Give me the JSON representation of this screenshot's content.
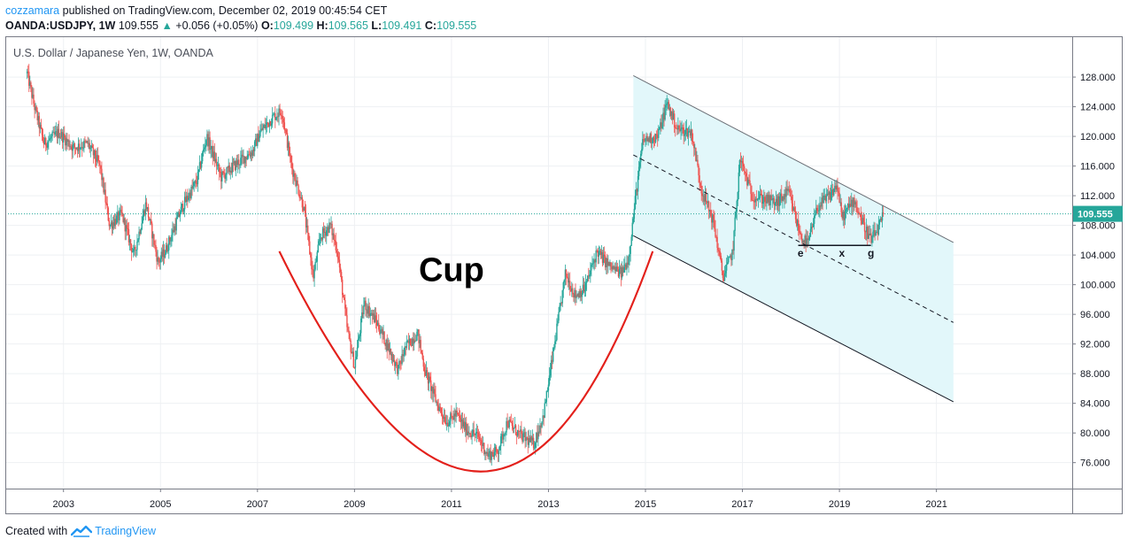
{
  "header": {
    "author": "cozzamara",
    "published_text": " published on TradingView.com, December 02, 2019 00:45:54 CET",
    "symbol": "OANDA:USDJPY, 1W",
    "last": "109.555",
    "change": "+0.056 (+0.05%)",
    "o_label": "O:",
    "o_value": "109.499",
    "h_label": "H:",
    "h_value": "109.565",
    "l_label": "L:",
    "l_value": "109.491",
    "c_label": "C:",
    "c_value": "109.555"
  },
  "footer": {
    "created_with": "Created with",
    "brand": "TradingView"
  },
  "colors": {
    "up": "#26a69a",
    "down": "#ef5350",
    "cup": "#e3201b",
    "channel_fill": "#e0f7fa",
    "price_label": "#26a69a",
    "grid": "#eef0f3"
  },
  "chart_data": {
    "type": "candlestick",
    "title": "U.S. Dollar / Japanese Yen, 1W, OANDA",
    "x_ticks": [
      "2003",
      "2005",
      "2007",
      "2009",
      "2011",
      "2013",
      "2015",
      "2017",
      "2019",
      "2021"
    ],
    "y_ticks": [
      "76.000",
      "80.000",
      "84.000",
      "88.000",
      "92.000",
      "96.000",
      "100.000",
      "104.000",
      "108.000",
      "112.000",
      "116.000",
      "120.000",
      "124.000",
      "128.000"
    ],
    "xlim": [
      2001.8,
      2023.8
    ],
    "ylim": [
      72.5,
      133.5
    ],
    "last_price": 109.555,
    "last_price_label": "109.555",
    "grid": true,
    "price_path": [
      [
        2002.25,
        128.5
      ],
      [
        2002.4,
        124
      ],
      [
        2002.6,
        119
      ],
      [
        2002.9,
        120.5
      ],
      [
        2003.2,
        118.5
      ],
      [
        2003.5,
        119
      ],
      [
        2003.75,
        116
      ],
      [
        2003.95,
        108
      ],
      [
        2004.2,
        109.5
      ],
      [
        2004.45,
        104
      ],
      [
        2004.7,
        111
      ],
      [
        2004.95,
        103
      ],
      [
        2005.1,
        104.5
      ],
      [
        2005.45,
        110.5
      ],
      [
        2005.75,
        114
      ],
      [
        2005.95,
        120
      ],
      [
        2006.25,
        114.5
      ],
      [
        2006.6,
        116.5
      ],
      [
        2006.9,
        118
      ],
      [
        2007.05,
        120.5
      ],
      [
        2007.3,
        122.5
      ],
      [
        2007.5,
        123.5
      ],
      [
        2007.7,
        116
      ],
      [
        2007.95,
        110.5
      ],
      [
        2008.15,
        101
      ],
      [
        2008.3,
        106.5
      ],
      [
        2008.5,
        108
      ],
      [
        2008.65,
        104.5
      ],
      [
        2008.85,
        94
      ],
      [
        2009.0,
        89
      ],
      [
        2009.2,
        97.5
      ],
      [
        2009.45,
        95
      ],
      [
        2009.7,
        91.5
      ],
      [
        2009.9,
        88.5
      ],
      [
        2010.05,
        91.5
      ],
      [
        2010.3,
        93.5
      ],
      [
        2010.45,
        88.5
      ],
      [
        2010.7,
        84
      ],
      [
        2010.9,
        81.5
      ],
      [
        2011.1,
        82.5
      ],
      [
        2011.3,
        80.5
      ],
      [
        2011.55,
        79.5
      ],
      [
        2011.75,
        77
      ],
      [
        2011.95,
        77.5
      ],
      [
        2012.15,
        81.5
      ],
      [
        2012.45,
        79.5
      ],
      [
        2012.7,
        78.5
      ],
      [
        2012.9,
        82.5
      ],
      [
        2013.15,
        93
      ],
      [
        2013.35,
        101.5
      ],
      [
        2013.55,
        98.5
      ],
      [
        2013.75,
        99.5
      ],
      [
        2014.0,
        104.5
      ],
      [
        2014.25,
        102.5
      ],
      [
        2014.5,
        101.5
      ],
      [
        2014.65,
        103.5
      ],
      [
        2014.8,
        112
      ],
      [
        2014.95,
        119.5
      ],
      [
        2015.25,
        120
      ],
      [
        2015.45,
        124.5
      ],
      [
        2015.65,
        121
      ],
      [
        2015.95,
        120.5
      ],
      [
        2016.15,
        113
      ],
      [
        2016.4,
        108.5
      ],
      [
        2016.6,
        101
      ],
      [
        2016.8,
        104.5
      ],
      [
        2016.95,
        117
      ],
      [
        2017.2,
        112
      ],
      [
        2017.45,
        111.5
      ],
      [
        2017.7,
        111
      ],
      [
        2017.95,
        112.5
      ],
      [
        2018.2,
        106.5
      ],
      [
        2018.35,
        105.5
      ],
      [
        2018.55,
        110.5
      ],
      [
        2018.8,
        112
      ],
      [
        2018.95,
        113.5
      ],
      [
        2019.05,
        109
      ],
      [
        2019.3,
        111.5
      ],
      [
        2019.5,
        108
      ],
      [
        2019.65,
        106
      ],
      [
        2019.8,
        107.5
      ],
      [
        2019.92,
        109.555
      ]
    ],
    "annotations": {
      "cup_label": "Cup",
      "cup_curve": [
        [
          2007.45,
          104.5
        ],
        [
          2011.6,
          74.8
        ],
        [
          2015.15,
          104.5
        ]
      ],
      "channel": {
        "upper": [
          [
            2014.75,
            128.2
          ],
          [
            2021.35,
            105.7
          ]
        ],
        "middle": [
          [
            2014.75,
            117.5
          ],
          [
            2021.35,
            94.9
          ]
        ],
        "lower": [
          [
            2014.75,
            106.6
          ],
          [
            2021.35,
            84.2
          ]
        ]
      },
      "base_line": {
        "x": [
          2018.15,
          2019.65
        ],
        "y": 105.3
      },
      "points": [
        {
          "label": "e",
          "x": 2018.2
        },
        {
          "label": "x",
          "x": 2019.05
        },
        {
          "label": "g",
          "x": 2019.65
        }
      ]
    }
  }
}
